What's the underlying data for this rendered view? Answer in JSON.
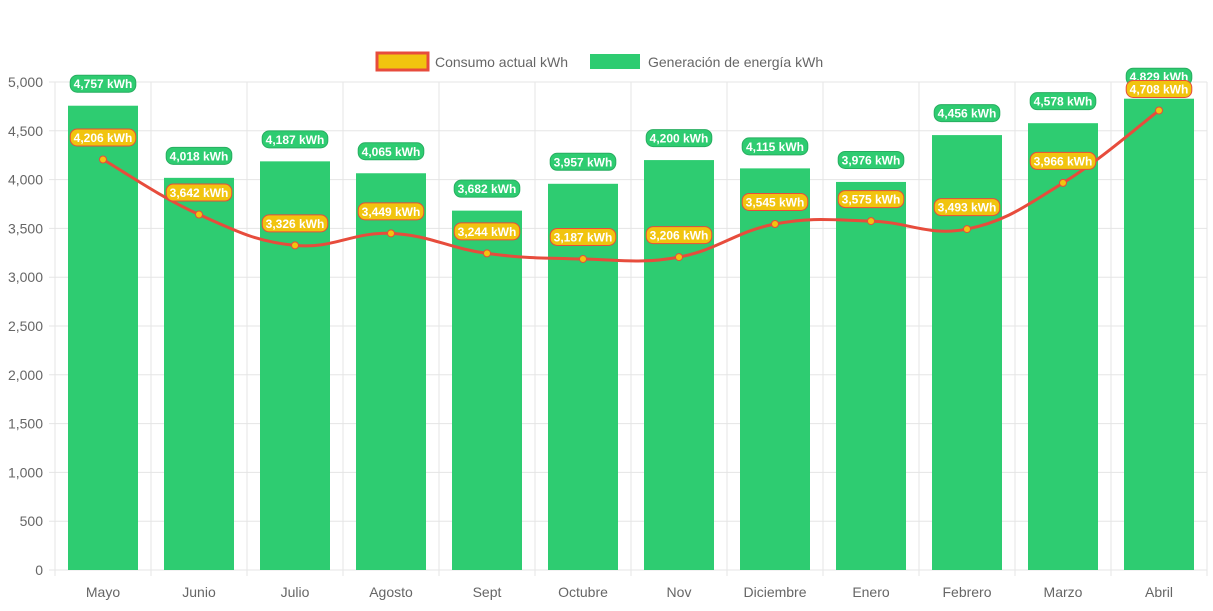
{
  "chart_data": {
    "type": "bar",
    "categories": [
      "Mayo",
      "Junio",
      "Julio",
      "Agosto",
      "Sept",
      "Octubre",
      "Nov",
      "Diciembre",
      "Enero",
      "Febrero",
      "Marzo",
      "Abril"
    ],
    "series": [
      {
        "name": "Consumo actual kWh",
        "type": "line",
        "color": "#e74c3c",
        "point_color": "#f1c40f",
        "values": [
          4206,
          3642,
          3326,
          3449,
          3244,
          3187,
          3206,
          3545,
          3575,
          3493,
          3966,
          4708
        ]
      },
      {
        "name": "Generación de energía kWh",
        "type": "bar",
        "color": "#2ecc71",
        "values": [
          4757,
          4018,
          4187,
          4065,
          3682,
          3957,
          4200,
          4115,
          3976,
          4456,
          4578,
          4829
        ]
      }
    ],
    "data_label_unit": "kWh",
    "ylim": [
      0,
      5000
    ],
    "yticks": [
      0,
      500,
      1000,
      1500,
      2000,
      2500,
      3000,
      3500,
      4000,
      4500,
      5000
    ],
    "grid": true,
    "legend_position": "top"
  }
}
